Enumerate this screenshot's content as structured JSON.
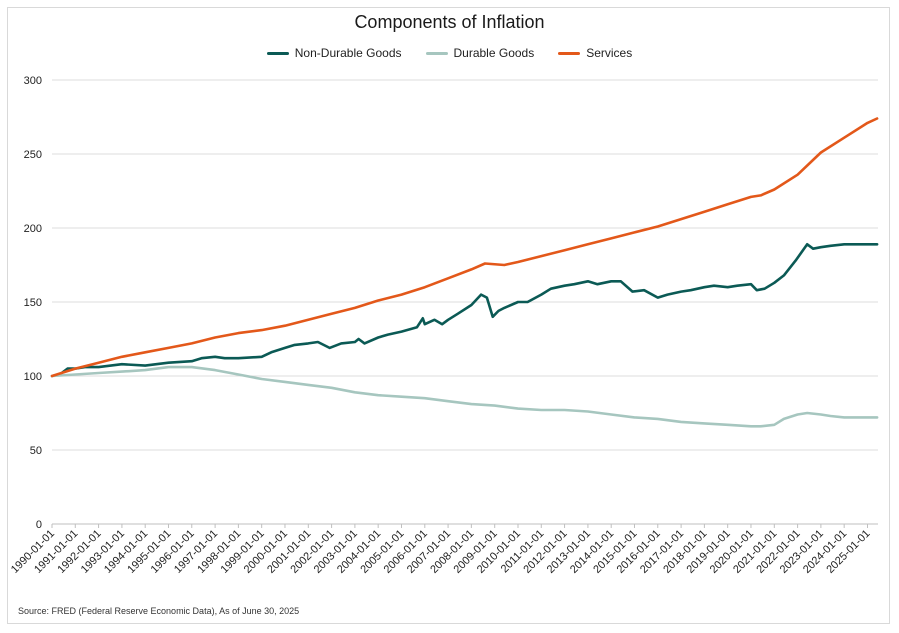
{
  "chart_data": {
    "type": "line",
    "title": "Components of Inflation",
    "xlabel": "",
    "ylabel": "",
    "ylim": [
      0,
      300
    ],
    "yticks": [
      0,
      50,
      100,
      150,
      200,
      250,
      300
    ],
    "grid": "horizontal",
    "legend_position": "top-center",
    "x_ticks": [
      "1990-01-01",
      "1991-01-01",
      "1992-01-01",
      "1993-01-01",
      "1994-01-01",
      "1995-01-01",
      "1996-01-01",
      "1997-01-01",
      "1998-01-01",
      "1999-01-01",
      "2000-01-01",
      "2001-01-01",
      "2002-01-01",
      "2003-01-01",
      "2004-01-01",
      "2005-01-01",
      "2006-01-01",
      "2007-01-01",
      "2008-01-01",
      "2009-01-01",
      "2010-01-01",
      "2011-01-01",
      "2012-01-01",
      "2013-01-01",
      "2014-01-01",
      "2015-01-01",
      "2016-01-01",
      "2017-01-01",
      "2018-01-01",
      "2019-01-01",
      "2020-01-01",
      "2021-01-01",
      "2022-01-01",
      "2023-01-01",
      "2024-01-01",
      "2025-01-01"
    ],
    "series": [
      {
        "name": "Non-Durable Goods",
        "color": "#0b5a55",
        "points": [
          [
            "1990-01-01",
            100
          ],
          [
            "1990-05-01",
            101
          ],
          [
            "1990-09-01",
            105
          ],
          [
            "1991-01-01",
            105
          ],
          [
            "1991-06-01",
            106
          ],
          [
            "1992-01-01",
            106
          ],
          [
            "1993-01-01",
            108
          ],
          [
            "1994-01-01",
            107
          ],
          [
            "1995-01-01",
            109
          ],
          [
            "1996-01-01",
            110
          ],
          [
            "1996-06-01",
            112
          ],
          [
            "1997-01-01",
            113
          ],
          [
            "1997-06-01",
            112
          ],
          [
            "1998-01-01",
            112
          ],
          [
            "1999-01-01",
            113
          ],
          [
            "1999-06-01",
            116
          ],
          [
            "2000-01-01",
            119
          ],
          [
            "2000-06-01",
            121
          ],
          [
            "2001-01-01",
            122
          ],
          [
            "2001-06-01",
            123
          ],
          [
            "2001-12-01",
            119
          ],
          [
            "2002-06-01",
            122
          ],
          [
            "2003-01-01",
            123
          ],
          [
            "2003-03-01",
            125
          ],
          [
            "2003-06-01",
            122
          ],
          [
            "2004-01-01",
            126
          ],
          [
            "2004-06-01",
            128
          ],
          [
            "2005-01-01",
            130
          ],
          [
            "2005-09-01",
            133
          ],
          [
            "2005-12-01",
            139
          ],
          [
            "2006-01-01",
            135
          ],
          [
            "2006-06-01",
            138
          ],
          [
            "2006-10-01",
            135
          ],
          [
            "2007-01-01",
            138
          ],
          [
            "2007-06-01",
            142
          ],
          [
            "2008-01-01",
            148
          ],
          [
            "2008-06-01",
            155
          ],
          [
            "2008-09-01",
            153
          ],
          [
            "2008-12-01",
            140
          ],
          [
            "2009-03-01",
            144
          ],
          [
            "2009-06-01",
            146
          ],
          [
            "2010-01-01",
            150
          ],
          [
            "2010-06-01",
            150
          ],
          [
            "2011-01-01",
            155
          ],
          [
            "2011-06-01",
            159
          ],
          [
            "2012-01-01",
            161
          ],
          [
            "2012-06-01",
            162
          ],
          [
            "2013-01-01",
            164
          ],
          [
            "2013-06-01",
            162
          ],
          [
            "2014-01-01",
            164
          ],
          [
            "2014-06-01",
            164
          ],
          [
            "2014-12-01",
            157
          ],
          [
            "2015-06-01",
            158
          ],
          [
            "2016-01-01",
            153
          ],
          [
            "2016-06-01",
            155
          ],
          [
            "2017-01-01",
            157
          ],
          [
            "2017-06-01",
            158
          ],
          [
            "2018-01-01",
            160
          ],
          [
            "2018-06-01",
            161
          ],
          [
            "2019-01-01",
            160
          ],
          [
            "2019-06-01",
            161
          ],
          [
            "2020-01-01",
            162
          ],
          [
            "2020-04-01",
            158
          ],
          [
            "2020-08-01",
            159
          ],
          [
            "2021-01-01",
            163
          ],
          [
            "2021-06-01",
            168
          ],
          [
            "2021-12-01",
            178
          ],
          [
            "2022-06-01",
            189
          ],
          [
            "2022-09-01",
            186
          ],
          [
            "2023-01-01",
            187
          ],
          [
            "2023-06-01",
            188
          ],
          [
            "2024-01-01",
            189
          ],
          [
            "2024-06-01",
            189
          ],
          [
            "2025-01-01",
            189
          ],
          [
            "2025-06-01",
            189
          ]
        ]
      },
      {
        "name": "Durable Goods",
        "color": "#a6c6bf",
        "points": [
          [
            "1990-01-01",
            100
          ],
          [
            "1991-01-01",
            101
          ],
          [
            "1992-01-01",
            102
          ],
          [
            "1993-01-01",
            103
          ],
          [
            "1994-01-01",
            104
          ],
          [
            "1995-01-01",
            106
          ],
          [
            "1995-06-01",
            106
          ],
          [
            "1996-01-01",
            106
          ],
          [
            "1997-01-01",
            104
          ],
          [
            "1998-01-01",
            101
          ],
          [
            "1999-01-01",
            98
          ],
          [
            "2000-01-01",
            96
          ],
          [
            "2001-01-01",
            94
          ],
          [
            "2002-01-01",
            92
          ],
          [
            "2003-01-01",
            89
          ],
          [
            "2004-01-01",
            87
          ],
          [
            "2005-01-01",
            86
          ],
          [
            "2006-01-01",
            85
          ],
          [
            "2007-01-01",
            83
          ],
          [
            "2008-01-01",
            81
          ],
          [
            "2009-01-01",
            80
          ],
          [
            "2010-01-01",
            78
          ],
          [
            "2011-01-01",
            77
          ],
          [
            "2012-01-01",
            77
          ],
          [
            "2013-01-01",
            76
          ],
          [
            "2014-01-01",
            74
          ],
          [
            "2015-01-01",
            72
          ],
          [
            "2016-01-01",
            71
          ],
          [
            "2017-01-01",
            69
          ],
          [
            "2018-01-01",
            68
          ],
          [
            "2019-01-01",
            67
          ],
          [
            "2020-01-01",
            66
          ],
          [
            "2020-06-01",
            66
          ],
          [
            "2021-01-01",
            67
          ],
          [
            "2021-06-01",
            71
          ],
          [
            "2022-01-01",
            74
          ],
          [
            "2022-06-01",
            75
          ],
          [
            "2023-01-01",
            74
          ],
          [
            "2023-06-01",
            73
          ],
          [
            "2024-01-01",
            72
          ],
          [
            "2024-06-01",
            72
          ],
          [
            "2025-01-01",
            72
          ],
          [
            "2025-06-01",
            72
          ]
        ]
      },
      {
        "name": "Services",
        "color": "#e3581a",
        "points": [
          [
            "1990-01-01",
            100
          ],
          [
            "1991-01-01",
            105
          ],
          [
            "1992-01-01",
            109
          ],
          [
            "1993-01-01",
            113
          ],
          [
            "1994-01-01",
            116
          ],
          [
            "1995-01-01",
            119
          ],
          [
            "1996-01-01",
            122
          ],
          [
            "1997-01-01",
            126
          ],
          [
            "1998-01-01",
            129
          ],
          [
            "1999-01-01",
            131
          ],
          [
            "2000-01-01",
            134
          ],
          [
            "2001-01-01",
            138
          ],
          [
            "2002-01-01",
            142
          ],
          [
            "2003-01-01",
            146
          ],
          [
            "2004-01-01",
            151
          ],
          [
            "2005-01-01",
            155
          ],
          [
            "2006-01-01",
            160
          ],
          [
            "2007-01-01",
            166
          ],
          [
            "2008-01-01",
            172
          ],
          [
            "2008-08-01",
            176
          ],
          [
            "2009-06-01",
            175
          ],
          [
            "2010-01-01",
            177
          ],
          [
            "2011-01-01",
            181
          ],
          [
            "2012-01-01",
            185
          ],
          [
            "2013-01-01",
            189
          ],
          [
            "2014-01-01",
            193
          ],
          [
            "2015-01-01",
            197
          ],
          [
            "2016-01-01",
            201
          ],
          [
            "2017-01-01",
            206
          ],
          [
            "2018-01-01",
            211
          ],
          [
            "2019-01-01",
            216
          ],
          [
            "2020-01-01",
            221
          ],
          [
            "2020-06-01",
            222
          ],
          [
            "2021-01-01",
            226
          ],
          [
            "2022-01-01",
            236
          ],
          [
            "2023-01-01",
            251
          ],
          [
            "2024-01-01",
            261
          ],
          [
            "2025-01-01",
            271
          ],
          [
            "2025-06-01",
            274
          ]
        ]
      }
    ]
  },
  "footer": {
    "source": "Source: FRED (Federal Reserve Economic Data), As of June 30, 2025"
  }
}
